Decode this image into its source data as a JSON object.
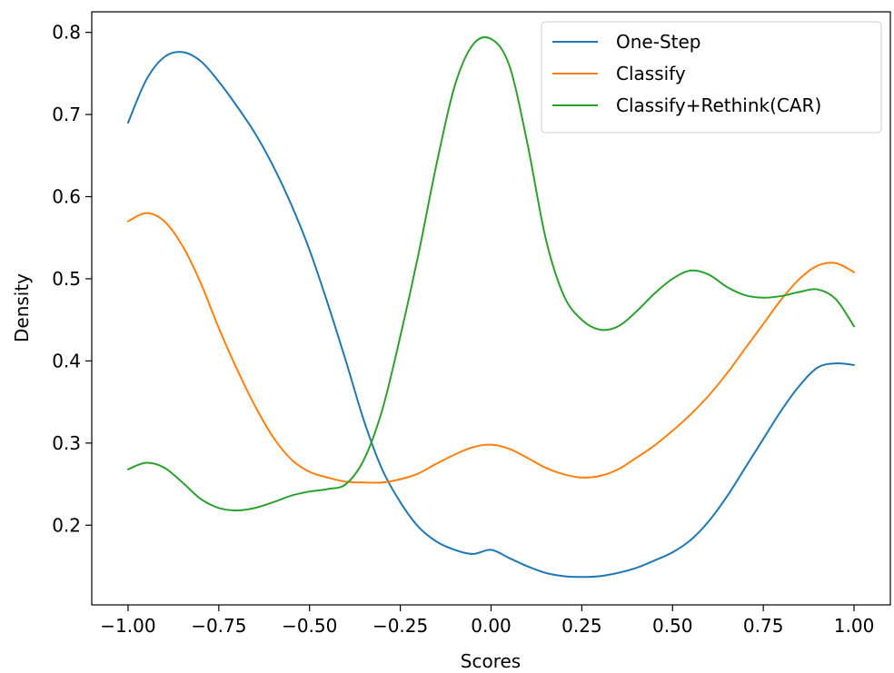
{
  "chart_data": {
    "type": "line",
    "xlabel": "Scores",
    "ylabel": "Density",
    "xlim": [
      -1.1,
      1.1
    ],
    "ylim": [
      0.103,
      0.825
    ],
    "xticks": [
      -1.0,
      -0.75,
      -0.5,
      -0.25,
      0.0,
      0.25,
      0.5,
      0.75,
      1.0
    ],
    "xtick_labels": [
      "−1.00",
      "−0.75",
      "−0.50",
      "−0.25",
      "0.00",
      "0.25",
      "0.50",
      "0.75",
      "1.00"
    ],
    "yticks": [
      0.2,
      0.3,
      0.4,
      0.5,
      0.6,
      0.7,
      0.8
    ],
    "ytick_labels": [
      "0.2",
      "0.3",
      "0.4",
      "0.5",
      "0.6",
      "0.7",
      "0.8"
    ],
    "legend_position": "top-right",
    "grid": false,
    "series": [
      {
        "name": "One-Step",
        "color": "#1f77b4",
        "x": [
          -1.0,
          -0.95,
          -0.9,
          -0.85,
          -0.8,
          -0.75,
          -0.7,
          -0.65,
          -0.6,
          -0.55,
          -0.5,
          -0.45,
          -0.4,
          -0.35,
          -0.3,
          -0.25,
          -0.2,
          -0.15,
          -0.1,
          -0.05,
          0.0,
          0.05,
          0.1,
          0.15,
          0.2,
          0.25,
          0.3,
          0.35,
          0.4,
          0.45,
          0.5,
          0.55,
          0.6,
          0.65,
          0.7,
          0.75,
          0.8,
          0.85,
          0.9,
          0.95,
          1.0
        ],
        "y": [
          0.69,
          0.742,
          0.77,
          0.776,
          0.765,
          0.74,
          0.71,
          0.677,
          0.637,
          0.59,
          0.535,
          0.47,
          0.4,
          0.327,
          0.268,
          0.228,
          0.198,
          0.18,
          0.17,
          0.165,
          0.17,
          0.16,
          0.15,
          0.142,
          0.138,
          0.137,
          0.138,
          0.142,
          0.148,
          0.157,
          0.167,
          0.182,
          0.205,
          0.235,
          0.27,
          0.305,
          0.34,
          0.37,
          0.392,
          0.397,
          0.395
        ]
      },
      {
        "name": "Classify",
        "color": "#ff7f0e",
        "x": [
          -1.0,
          -0.95,
          -0.9,
          -0.85,
          -0.8,
          -0.75,
          -0.7,
          -0.65,
          -0.6,
          -0.55,
          -0.5,
          -0.45,
          -0.4,
          -0.35,
          -0.3,
          -0.25,
          -0.2,
          -0.15,
          -0.1,
          -0.05,
          0.0,
          0.05,
          0.1,
          0.15,
          0.2,
          0.25,
          0.3,
          0.35,
          0.4,
          0.45,
          0.5,
          0.55,
          0.6,
          0.65,
          0.7,
          0.75,
          0.8,
          0.85,
          0.9,
          0.95,
          1.0
        ],
        "y": [
          0.57,
          0.58,
          0.57,
          0.54,
          0.495,
          0.44,
          0.39,
          0.345,
          0.307,
          0.28,
          0.265,
          0.258,
          0.253,
          0.252,
          0.252,
          0.256,
          0.263,
          0.275,
          0.286,
          0.295,
          0.298,
          0.293,
          0.282,
          0.27,
          0.262,
          0.258,
          0.26,
          0.268,
          0.282,
          0.297,
          0.315,
          0.335,
          0.358,
          0.385,
          0.415,
          0.445,
          0.475,
          0.5,
          0.516,
          0.519,
          0.508
        ]
      },
      {
        "name": "Classify+Rethink(CAR)",
        "color": "#2ca02c",
        "x": [
          -1.0,
          -0.95,
          -0.9,
          -0.85,
          -0.8,
          -0.75,
          -0.7,
          -0.65,
          -0.6,
          -0.55,
          -0.5,
          -0.45,
          -0.4,
          -0.35,
          -0.3,
          -0.25,
          -0.2,
          -0.15,
          -0.1,
          -0.05,
          0.0,
          0.05,
          0.1,
          0.15,
          0.2,
          0.25,
          0.3,
          0.35,
          0.4,
          0.45,
          0.5,
          0.55,
          0.6,
          0.65,
          0.7,
          0.75,
          0.8,
          0.85,
          0.9,
          0.95,
          1.0
        ],
        "y": [
          0.268,
          0.276,
          0.27,
          0.252,
          0.232,
          0.221,
          0.218,
          0.221,
          0.228,
          0.236,
          0.241,
          0.244,
          0.25,
          0.28,
          0.34,
          0.43,
          0.53,
          0.64,
          0.735,
          0.785,
          0.792,
          0.76,
          0.665,
          0.55,
          0.48,
          0.45,
          0.438,
          0.442,
          0.46,
          0.482,
          0.5,
          0.51,
          0.505,
          0.49,
          0.48,
          0.477,
          0.479,
          0.484,
          0.487,
          0.475,
          0.442
        ]
      }
    ]
  }
}
